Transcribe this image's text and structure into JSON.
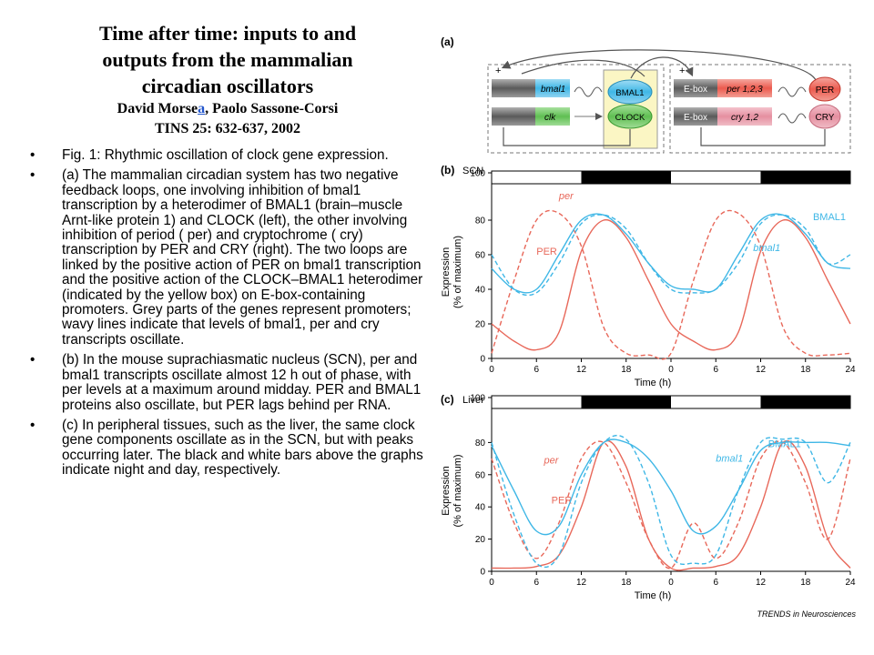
{
  "header": {
    "title": "Time after time: inputs to and outputs from the mammalian circadian oscillators",
    "title_lines": [
      "Time after time: inputs to and",
      "outputs from the mammalian",
      "circadian oscillators"
    ],
    "authors_pre": "David Morse",
    "authors_link": "a",
    "authors_post": ", Paolo Sassone-Corsi",
    "reference": "TINS 25: 632-637, 2002"
  },
  "bullets": [
    {
      "marker": "•",
      "text": "Fig. 1: Rhythmic oscillation of clock gene expression."
    },
    {
      "marker": "•",
      "text": "(a) The mammalian circadian system has two negative feedback loops, one involving inhibition of bmal1 transcription by a heterodimer of BMAL1 (brain–muscle Arnt-like protein 1) and CLOCK (left), the other involving inhibition of period ( per) and cryptochrome ( cry) transcription by PER and CRY (right). The two loops are linked by the positive action of PER on bmal1 transcription and the positive action of the CLOCK–BMAL1 heterodimer (indicated by the yellow box) on E-box-containing promoters. Grey parts of the genes represent promoters; wavy lines indicate that levels of bmal1, per and cry transcripts oscillate."
    },
    {
      "marker": "•",
      "text": "(b) In the mouse suprachiasmatic nucleus (SCN), per and bmal1 transcripts oscillate almost 12 h out of phase, with per levels at a maximum around midday. PER and BMAL1 proteins also oscillate, but PER lags behind per RNA."
    },
    {
      "marker": "•",
      "text": "(c) In peripheral tissues, such as the liver, the same clock gene components oscillate as in the SCN, but with peaks occurring later. The black and white bars above the graphs indicate night and day, respectively."
    }
  ],
  "diagram": {
    "panel_label": "(a)",
    "plus_left": "+",
    "minus_left": "−",
    "plus_right": "+",
    "minus_right": "−",
    "gene_bmal1": "bmal1",
    "gene_clk": "clk",
    "protein_bmal1": "BMAL1",
    "protein_clock": "CLOCK",
    "ebox_1": "E-box",
    "ebox_2": "E-box",
    "gene_per": "per 1,2,3",
    "gene_cry": "cry 1,2",
    "protein_per": "PER",
    "protein_cry": "CRY",
    "colors": {
      "blue": "#3fb7e6",
      "green": "#66c45a",
      "red": "#ec5a4e",
      "pink": "#e58fa0",
      "yellow": "#fbf6c4",
      "grey": "#8a8a8a"
    }
  },
  "footer": {
    "credit": "TRENDS in Neurosciences"
  },
  "chart_data": [
    {
      "panel_label": "(b)",
      "tissue": "SCN",
      "type": "line",
      "xlabel": "Time (h)",
      "ylabel": "Expression",
      "ylabel2": "(% of maximum)",
      "xlim": [
        0,
        48
      ],
      "ylim": [
        0,
        100
      ],
      "x_ticks": [
        0,
        6,
        12,
        18,
        24,
        30,
        36,
        42,
        48
      ],
      "x_tick_labels": [
        "0",
        "6",
        "12",
        "18",
        "0",
        "6",
        "12",
        "18",
        "24"
      ],
      "y_ticks": [
        0,
        20,
        40,
        60,
        80,
        100
      ],
      "night_bars": [
        [
          12,
          24
        ],
        [
          36,
          48
        ]
      ],
      "series": [
        {
          "name": "per",
          "style": "dashed",
          "color": "#e8685a",
          "x": [
            0,
            3,
            6,
            9,
            12,
            15,
            18,
            21,
            24,
            27,
            30,
            33,
            36,
            39,
            42,
            45,
            48
          ],
          "y": [
            3,
            45,
            80,
            84,
            65,
            18,
            3,
            2,
            3,
            45,
            80,
            84,
            65,
            18,
            3,
            2,
            3
          ]
        },
        {
          "name": "PER",
          "style": "solid",
          "color": "#e8685a",
          "x": [
            0,
            3,
            6,
            9,
            12,
            15,
            18,
            21,
            24,
            27,
            30,
            33,
            36,
            39,
            42,
            45,
            48
          ],
          "y": [
            20,
            10,
            5,
            15,
            62,
            80,
            70,
            45,
            20,
            10,
            5,
            15,
            62,
            80,
            70,
            45,
            20
          ]
        },
        {
          "name": "BMAL1",
          "style": "solid",
          "color": "#3fb7e6",
          "x": [
            0,
            3,
            6,
            9,
            12,
            15,
            18,
            21,
            24,
            27,
            30,
            33,
            36,
            39,
            42,
            45,
            48
          ],
          "y": [
            52,
            40,
            40,
            60,
            80,
            83,
            72,
            55,
            42,
            40,
            40,
            60,
            80,
            83,
            72,
            55,
            52
          ]
        },
        {
          "name": "bmal1",
          "style": "dashed",
          "color": "#3fb7e6",
          "x": [
            0,
            3,
            6,
            9,
            12,
            15,
            18,
            21,
            24,
            27,
            30,
            33,
            36,
            39,
            42,
            45,
            48
          ],
          "y": [
            60,
            40,
            38,
            55,
            78,
            83,
            75,
            55,
            40,
            38,
            40,
            55,
            78,
            83,
            75,
            55,
            60
          ]
        }
      ],
      "annotations": [
        "per",
        "PER",
        "BMAL1",
        "bmal1"
      ]
    },
    {
      "panel_label": "(c)",
      "tissue": "Liver",
      "type": "line",
      "xlabel": "Time (h)",
      "ylabel": "Expression",
      "ylabel2": "(% of maximum)",
      "xlim": [
        0,
        48
      ],
      "ylim": [
        0,
        100
      ],
      "x_ticks": [
        0,
        6,
        12,
        18,
        24,
        30,
        36,
        42,
        48
      ],
      "x_tick_labels": [
        "0",
        "6",
        "12",
        "18",
        "0",
        "6",
        "12",
        "18",
        "24"
      ],
      "y_ticks": [
        0,
        20,
        40,
        60,
        80,
        100
      ],
      "night_bars": [
        [
          12,
          24
        ],
        [
          36,
          48
        ]
      ],
      "series": [
        {
          "name": "per",
          "style": "dashed",
          "color": "#e8685a",
          "x": [
            0,
            3,
            6,
            9,
            12,
            15,
            18,
            21,
            24,
            27,
            30,
            33,
            36,
            39,
            42,
            45,
            48
          ],
          "y": [
            70,
            30,
            8,
            30,
            70,
            80,
            55,
            20,
            2,
            30,
            8,
            30,
            70,
            80,
            55,
            20,
            70
          ]
        },
        {
          "name": "PER",
          "style": "solid",
          "color": "#e8685a",
          "x": [
            0,
            3,
            6,
            9,
            12,
            15,
            18,
            21,
            24,
            27,
            30,
            33,
            36,
            39,
            42,
            45,
            48
          ],
          "y": [
            2,
            2,
            3,
            10,
            40,
            80,
            65,
            20,
            2,
            2,
            3,
            10,
            40,
            80,
            65,
            20,
            2
          ]
        },
        {
          "name": "BMAL1",
          "style": "solid",
          "color": "#3fb7e6",
          "x": [
            0,
            3,
            6,
            9,
            12,
            15,
            18,
            21,
            24,
            27,
            30,
            33,
            36,
            39,
            42,
            45,
            48
          ],
          "y": [
            78,
            50,
            25,
            28,
            60,
            80,
            80,
            70,
            50,
            25,
            28,
            50,
            75,
            80,
            80,
            80,
            78
          ]
        },
        {
          "name": "bmal1",
          "style": "dashed",
          "color": "#3fb7e6",
          "x": [
            0,
            3,
            6,
            9,
            12,
            15,
            18,
            21,
            24,
            27,
            30,
            33,
            36,
            39,
            42,
            45,
            48
          ],
          "y": [
            80,
            35,
            5,
            10,
            55,
            80,
            82,
            55,
            10,
            5,
            10,
            50,
            80,
            82,
            80,
            55,
            80
          ]
        }
      ],
      "annotations": [
        "per",
        "PER",
        "bmal1",
        "BMAL1"
      ]
    }
  ]
}
